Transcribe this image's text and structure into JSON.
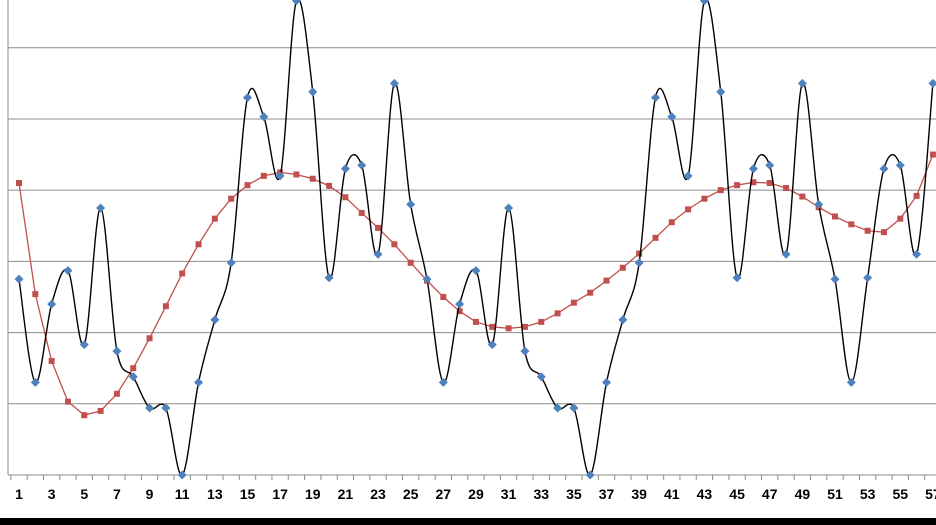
{
  "chart_data": {
    "type": "line",
    "x": [
      "1",
      "2",
      "3",
      "4",
      "5",
      "6",
      "7",
      "8",
      "9",
      "10",
      "11",
      "12",
      "13",
      "14",
      "15",
      "16",
      "17",
      "18",
      "19",
      "20",
      "21",
      "22",
      "23",
      "24",
      "25",
      "26",
      "27",
      "28",
      "29",
      "30",
      "31",
      "32",
      "33",
      "34",
      "35",
      "36",
      "37",
      "38",
      "39",
      "40",
      "41",
      "42",
      "43",
      "44",
      "45",
      "46",
      "47",
      "48",
      "49",
      "50",
      "51",
      "52",
      "53",
      "54",
      "55",
      "56",
      "57"
    ],
    "x_tick_labels": [
      "1",
      "3",
      "5",
      "7",
      "9",
      "11",
      "13",
      "15",
      "17",
      "19",
      "21",
      "23",
      "25",
      "27",
      "29",
      "31",
      "33",
      "35",
      "37",
      "39",
      "41",
      "43",
      "45",
      "47",
      "49",
      "51",
      "53",
      "55",
      "57"
    ],
    "ylim": [
      0,
      6.6
    ],
    "grid": true,
    "legend": "none",
    "title": "",
    "xlabel": "",
    "ylabel": "",
    "series": [
      {
        "color": "#000000",
        "marker": "diamond",
        "marker_color": "#4F81BD",
        "smooth": true,
        "values": [
          2.75,
          1.3,
          2.4,
          2.87,
          1.83,
          3.75,
          1.74,
          1.38,
          0.94,
          0.94,
          0.0,
          1.3,
          2.18,
          2.98,
          5.3,
          5.03,
          4.2,
          6.66,
          5.38,
          2.77,
          4.3,
          4.35,
          3.1,
          5.5,
          3.8,
          2.75,
          1.3,
          2.4,
          2.87,
          1.83,
          3.75,
          1.74,
          1.38,
          0.94,
          0.94,
          0.0,
          1.3,
          2.18,
          2.98,
          5.3,
          5.03,
          4.2,
          6.66,
          5.38,
          2.77,
          4.3,
          4.35,
          3.1,
          5.5,
          3.8,
          2.75,
          1.3,
          2.77,
          4.3,
          4.35,
          3.1,
          5.5
        ]
      },
      {
        "color": "#C0504D",
        "marker": "square",
        "marker_color": "#C0504D",
        "smooth": false,
        "values": [
          4.1,
          2.54,
          1.6,
          1.03,
          0.84,
          0.9,
          1.14,
          1.5,
          1.92,
          2.37,
          2.83,
          3.24,
          3.6,
          3.88,
          4.07,
          4.2,
          4.25,
          4.22,
          4.16,
          4.06,
          3.9,
          3.68,
          3.47,
          3.24,
          2.98,
          2.73,
          2.5,
          2.3,
          2.15,
          2.08,
          2.06,
          2.08,
          2.15,
          2.27,
          2.42,
          2.56,
          2.73,
          2.91,
          3.11,
          3.33,
          3.55,
          3.73,
          3.88,
          4.0,
          4.07,
          4.11,
          4.1,
          4.03,
          3.91,
          3.76,
          3.63,
          3.52,
          3.43,
          3.41,
          3.6,
          3.92,
          4.5
        ]
      }
    ]
  }
}
